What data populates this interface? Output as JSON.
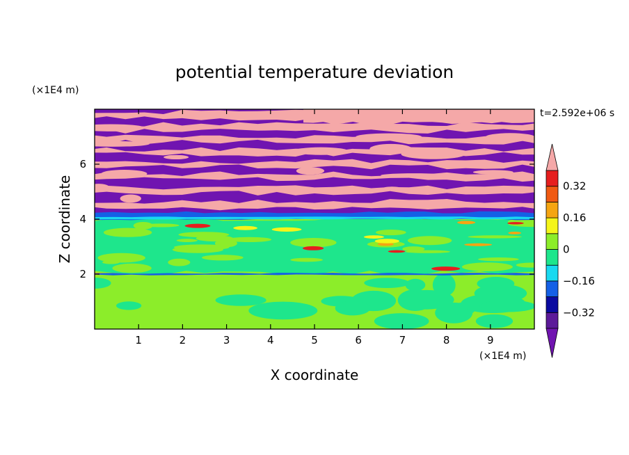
{
  "chart_data": {
    "type": "heatmap",
    "title": "potential temperature deviation",
    "xlabel": "X coordinate",
    "ylabel": "Z coordinate",
    "x_unit_label": "(×1E4 m)",
    "y_unit_label": "(×1E4 m)",
    "time_label": "t=2.592e+06 s",
    "xlim": [
      0,
      10
    ],
    "ylim": [
      0,
      8
    ],
    "x_ticks": [
      1,
      2,
      3,
      4,
      5,
      6,
      7,
      8,
      9
    ],
    "y_ticks": [
      2,
      4,
      6
    ],
    "colorbar": {
      "levels": [
        -0.4,
        -0.32,
        -0.24,
        -0.16,
        -0.08,
        0,
        0.08,
        0.16,
        0.24,
        0.32,
        0.4
      ],
      "colors": [
        "#5c1a99",
        "#0a0aa0",
        "#1460e6",
        "#19d9f0",
        "#1ee68c",
        "#8ced2a",
        "#f5f519",
        "#f5a512",
        "#f05a12",
        "#e61e1e"
      ],
      "under_color": "#7014b0",
      "over_color": "#f5a8a8",
      "tick_labels": [
        "0.32",
        "0.16",
        "0",
        "−0.16",
        "−0.32"
      ],
      "tick_values": [
        0.32,
        0.16,
        0,
        -0.16,
        -0.32
      ]
    },
    "regions": [
      {
        "zrange": [
          0,
          2
        ],
        "dominant": "#8ced2a",
        "secondary": "#1ee68c"
      },
      {
        "zrange": [
          2,
          4
        ],
        "dominant": "#1ee68c",
        "secondary": "#8ced2a"
      },
      {
        "zrange": [
          4,
          8
        ],
        "bands": "alternating",
        "colors": [
          "#7014b0",
          "#f5a8a8"
        ]
      }
    ]
  }
}
